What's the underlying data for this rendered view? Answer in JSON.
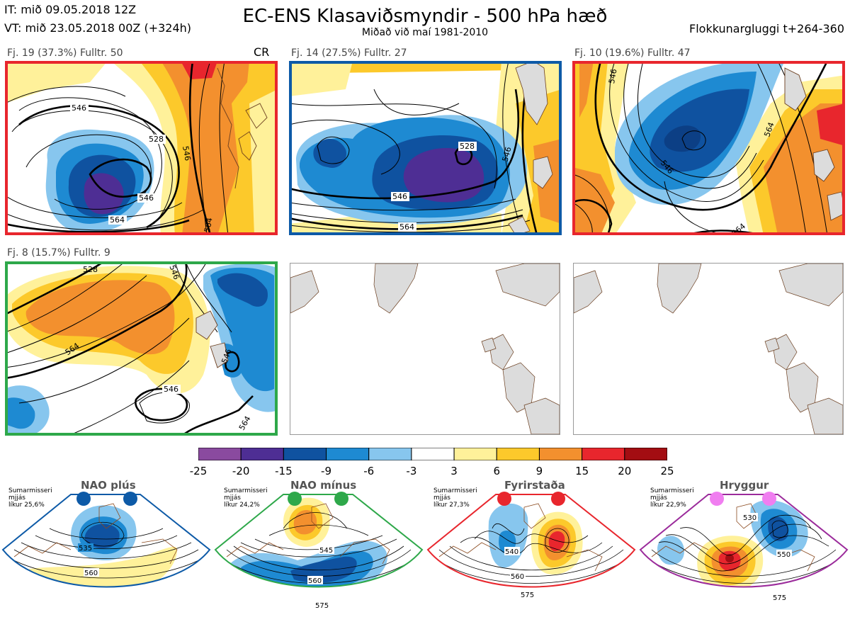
{
  "header": {
    "it": "IT: mið 09.05.2018 12Z",
    "vt": "VT: mið 23.05.2018 00Z  (+324h)",
    "title": "EC-ENS Klasaviðsmyndir - 500 hPa hæð",
    "subtitle": "Miðað við maí 1981-2010",
    "window": "Flokkunargluggi t+264-360",
    "cr": "CR"
  },
  "clusters": [
    {
      "label": "Fj. 19 (37.3%)   Fulltr. 50",
      "frame_color": "#e8262d",
      "contours": [
        "546",
        "528",
        "546",
        "564",
        "564",
        "546"
      ]
    },
    {
      "label": "Fj. 14 (27.5%)   Fulltr. 27",
      "frame_color": "#0d5aa7",
      "contours": [
        "528",
        "546",
        "564",
        "546"
      ]
    },
    {
      "label": "Fj. 10 (19.6%)   Fulltr. 47",
      "frame_color": "#e8262d",
      "contours": [
        "546",
        "564",
        "546",
        "564"
      ]
    },
    {
      "label": "Fj. 8 (15.7%)   Fulltr. 9",
      "frame_color": "#2ea84a",
      "contours": [
        "528",
        "564",
        "546",
        "546",
        "546",
        "564"
      ]
    }
  ],
  "colorbar": {
    "ticks": [
      "-25",
      "-20",
      "-15",
      "-9",
      "-6",
      "-3",
      "3",
      "6",
      "9",
      "15",
      "20",
      "25"
    ],
    "colors": [
      "#8a4a9f",
      "#4e2e94",
      "#0f52a0",
      "#1e8ad2",
      "#87c6ee",
      "#ffffff",
      "#fff19a",
      "#fcc92b",
      "#f3902e",
      "#e8262d",
      "#a30d12"
    ]
  },
  "regimes": [
    {
      "title": "NAO plús",
      "note": [
        "Sumarmisseri",
        "mjjás",
        "líkur 25,6%"
      ],
      "color": "#0d5aa7",
      "contours": [
        "535",
        "560"
      ]
    },
    {
      "title": "NAO mínus",
      "note": [
        "Sumarmisseri",
        "mjjás",
        "líkur 24,2%"
      ],
      "color": "#2ea84a",
      "contours": [
        "545",
        "560",
        "575"
      ]
    },
    {
      "title": "Fyrirstaða",
      "note": [
        "Sumarmisseri",
        "mjjás",
        "líkur 27,3%"
      ],
      "color": "#e8262d",
      "contours": [
        "540",
        "560",
        "575"
      ]
    },
    {
      "title": "Hryggur",
      "note": [
        "Sumarmisseri",
        "mjjás",
        "líkur 22,9%"
      ],
      "color": "#9b2b9b",
      "dot_color": "#f07ef0",
      "contours": [
        "530",
        "550",
        "575"
      ]
    }
  ]
}
